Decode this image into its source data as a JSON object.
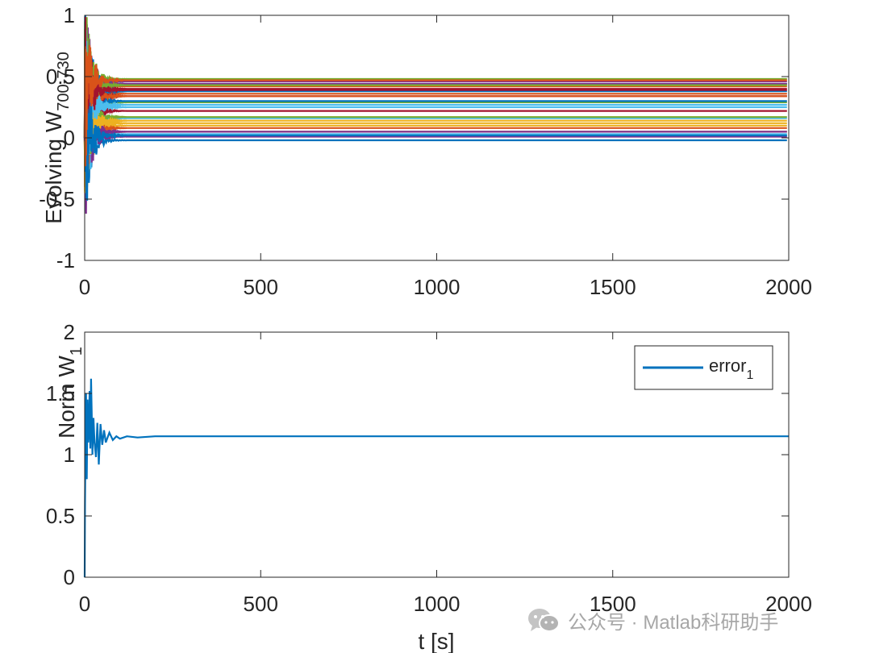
{
  "chart_data": [
    {
      "type": "line",
      "ylabel": "Evolving W",
      "ylabel_subscript": "700-730",
      "xlim": [
        0,
        2000
      ],
      "ylim": [
        -1,
        1
      ],
      "xticks": [
        0,
        500,
        1000,
        1500,
        2000
      ],
      "xtick_labels": [
        "0",
        "500",
        "1000",
        "1500",
        "2000"
      ],
      "yticks": [
        -1,
        -0.5,
        0,
        0.5,
        1
      ],
      "ytick_labels": [
        "-1",
        "-0.5",
        "0",
        "0.5",
        "1"
      ],
      "grid": false,
      "legend": "none",
      "transient_until": 120,
      "series": [
        {
          "color": "#0072BD",
          "final": -0.02
        },
        {
          "color": "#D95319",
          "final": 0.42
        },
        {
          "color": "#EDB120",
          "final": 0.1
        },
        {
          "color": "#7E2F8E",
          "final": 0.46
        },
        {
          "color": "#77AC30",
          "final": 0.48
        },
        {
          "color": "#4DBEEE",
          "final": 0.03
        },
        {
          "color": "#A2142F",
          "final": 0.22
        },
        {
          "color": "#0072BD",
          "final": 0.44
        },
        {
          "color": "#D95319",
          "final": 0.36
        },
        {
          "color": "#EDB120",
          "final": 0.05
        },
        {
          "color": "#7E2F8E",
          "final": 0.01
        },
        {
          "color": "#77AC30",
          "final": 0.29
        },
        {
          "color": "#4DBEEE",
          "final": 0.16
        },
        {
          "color": "#A2142F",
          "final": 0.4
        },
        {
          "color": "#0072BD",
          "final": 0.3
        },
        {
          "color": "#D95319",
          "final": 0.08
        },
        {
          "color": "#EDB120",
          "final": 0.12
        },
        {
          "color": "#7E2F8E",
          "final": 0.05
        },
        {
          "color": "#77AC30",
          "final": 0.17
        },
        {
          "color": "#4DBEEE",
          "final": 0.25
        },
        {
          "color": "#A2142F",
          "final": 0.34
        },
        {
          "color": "#0072BD",
          "final": 0.38
        },
        {
          "color": "#D95319",
          "final": 0.34
        },
        {
          "color": "#EDB120",
          "final": 0.14
        },
        {
          "color": "#7E2F8E",
          "final": 0.44
        },
        {
          "color": "#77AC30",
          "final": 0.43
        },
        {
          "color": "#4DBEEE",
          "final": 0.27
        },
        {
          "color": "#A2142F",
          "final": 0.39
        },
        {
          "color": "#0072BD",
          "final": 0.02
        },
        {
          "color": "#D95319",
          "final": 0.47
        }
      ]
    },
    {
      "type": "line",
      "ylabel": "Norm W",
      "ylabel_subscript": "1",
      "xlabel": "t [s]",
      "xlim": [
        0,
        2000
      ],
      "ylim": [
        0,
        2
      ],
      "xticks": [
        0,
        500,
        1000,
        1500,
        2000
      ],
      "xtick_labels": [
        "0",
        "500",
        "1000",
        "1500",
        "2000"
      ],
      "yticks": [
        0,
        0.5,
        1,
        1.5,
        2
      ],
      "ytick_labels": [
        "0",
        "0.5",
        "1",
        "1.5",
        "2"
      ],
      "grid": false,
      "legend": "top-right",
      "series": [
        {
          "name": "error",
          "name_subscript": "1",
          "color": "#0072BD",
          "x": [
            0,
            1,
            2,
            4,
            6,
            8,
            10,
            12,
            14,
            16,
            18,
            20,
            22,
            25,
            28,
            32,
            36,
            40,
            45,
            50,
            55,
            60,
            70,
            80,
            90,
            100,
            120,
            150,
            200,
            300,
            500,
            1000,
            1500,
            2000
          ],
          "y": [
            0,
            0.6,
            1.0,
            1.5,
            0.8,
            1.45,
            1.1,
            1.2,
            1.52,
            1.05,
            1.62,
            1.35,
            1.0,
            1.3,
            1.1,
            0.98,
            1.26,
            0.92,
            1.25,
            1.08,
            1.2,
            1.1,
            1.18,
            1.12,
            1.15,
            1.13,
            1.15,
            1.14,
            1.15,
            1.15,
            1.15,
            1.15,
            1.15,
            1.15
          ]
        }
      ]
    }
  ],
  "watermark": {
    "text": "公众号 · Matlab科研助手",
    "icon": "wechat-icon"
  }
}
